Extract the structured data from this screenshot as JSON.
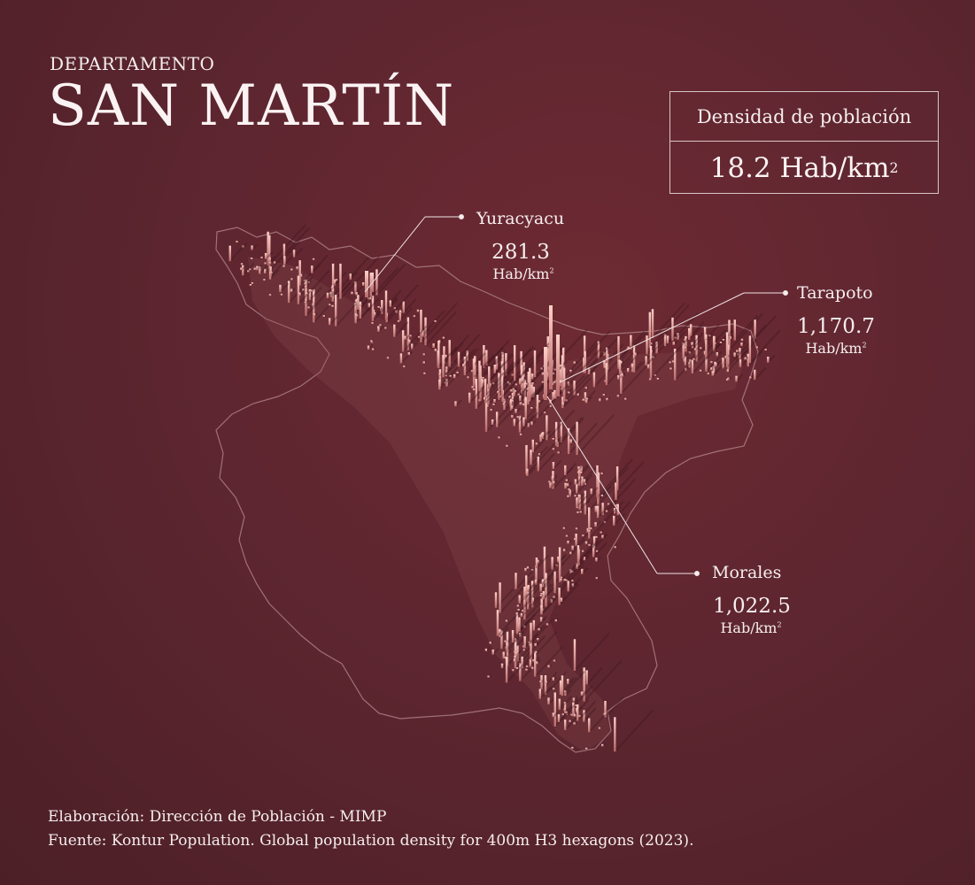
{
  "header": {
    "eyebrow": "DEPARTAMENTO",
    "title": "SAN MARTÍN"
  },
  "density_box": {
    "label": "Densidad de población",
    "value": "18.2 Hab/km",
    "value_sup": "2"
  },
  "callouts": [
    {
      "name": "Yuracyacu",
      "value": "281.3",
      "unit": "Hab/km",
      "unit_sup": "2"
    },
    {
      "name": "Tarapoto",
      "value": "1,170.7",
      "unit": "Hab/km",
      "unit_sup": "2"
    },
    {
      "name": "Morales",
      "value": "1,022.5",
      "unit": "Hab/km",
      "unit_sup": "2"
    }
  ],
  "footer": {
    "line1": "Elaboración: Dirección de Población - MIMP",
    "line2": "Fuente: Kontur Population. Global population density for 400m H3 hexagons (2023)."
  },
  "colors": {
    "background": "#5e2630",
    "spike": "#f0a6a0",
    "outline": "#a97a80",
    "text": "#f6eeee"
  }
}
